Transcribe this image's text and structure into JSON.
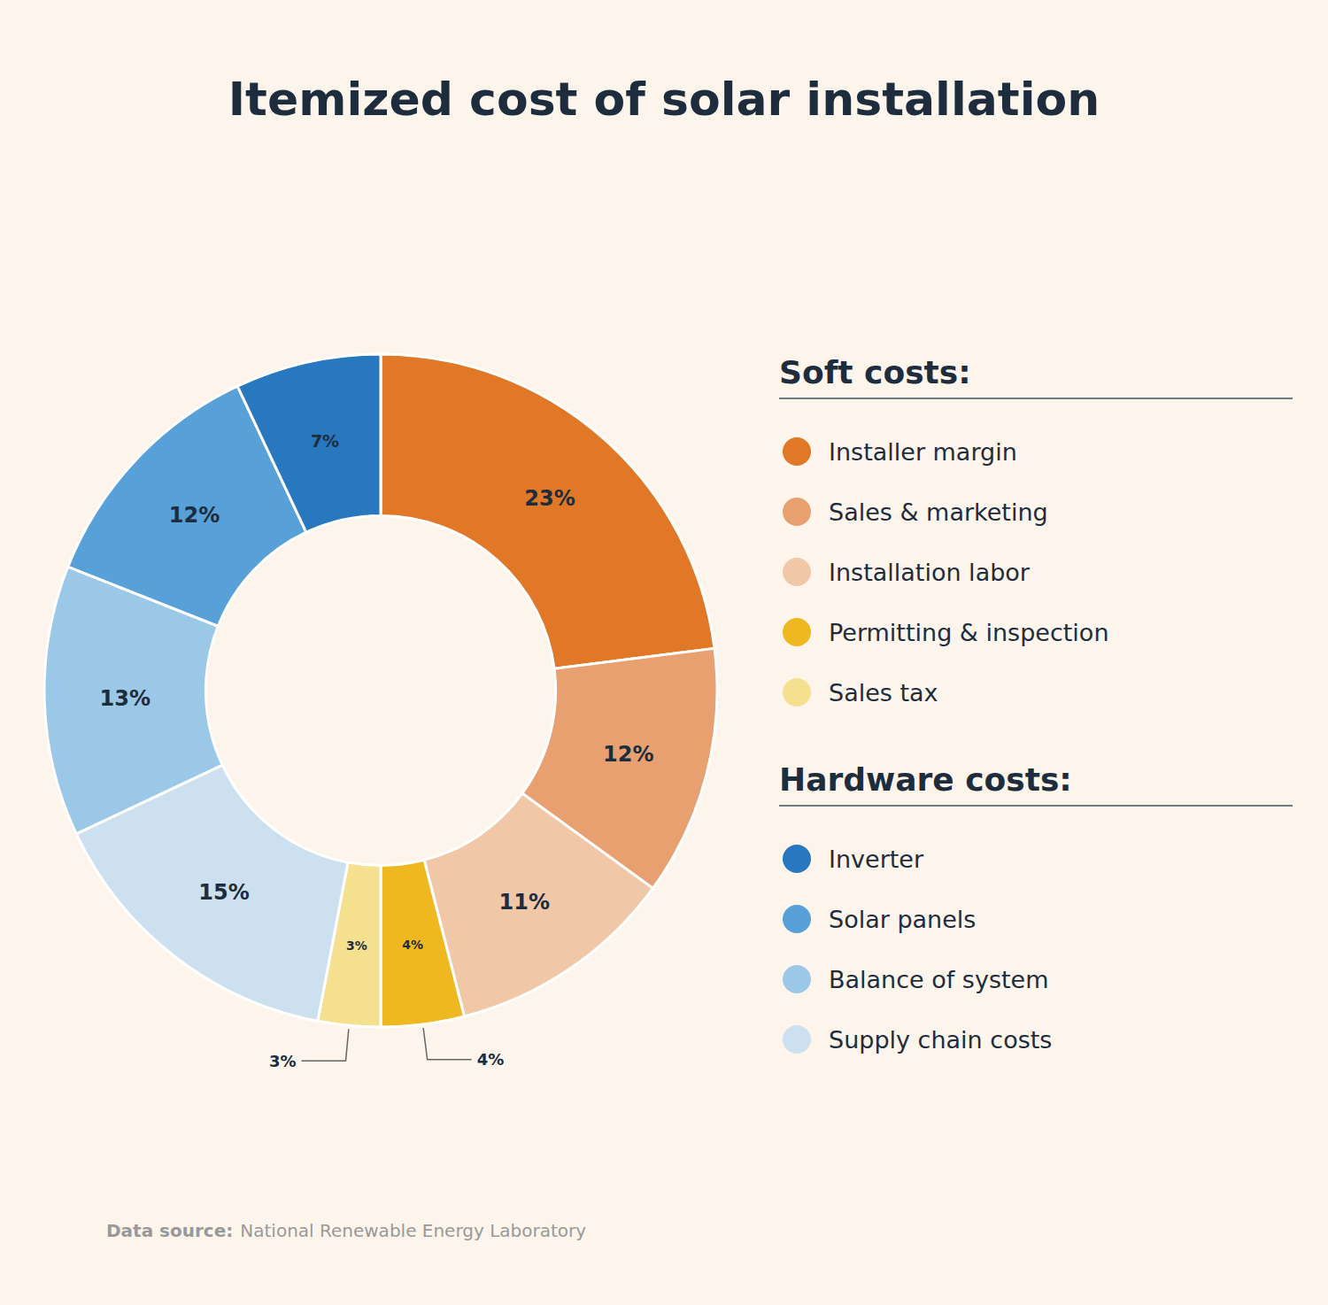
{
  "chart_data": {
    "type": "donut",
    "title": "Itemized cost of solar installation",
    "categories": [
      "Installer margin",
      "Sales & marketing",
      "Installation labor",
      "Permitting & inspection",
      "Sales tax",
      "Supply chain costs",
      "Balance of system",
      "Solar panels",
      "Inverter"
    ],
    "values": [
      23,
      12,
      11,
      4,
      3,
      15,
      13,
      12,
      7
    ],
    "value_labels": [
      "23%",
      "12%",
      "11%",
      "4%",
      "3%",
      "15%",
      "13%",
      "12%",
      "7%"
    ],
    "colors": [
      "#e07828",
      "#e8a070",
      "#f0c8a8",
      "#f0b820",
      "#f5e090",
      "#cce0f0",
      "#9cc8e8",
      "#58a0d8",
      "#2878c0"
    ],
    "data_labels": true,
    "legend": "right",
    "legend_groups": [
      {
        "title": "Soft costs:",
        "items": [
          "Installer margin",
          "Sales & marketing",
          "Installation labor",
          "Permitting & inspection",
          "Sales tax"
        ]
      },
      {
        "title": "Hardware costs:",
        "items": [
          "Inverter",
          "Solar panels",
          "Balance of system",
          "Supply chain costs"
        ]
      }
    ],
    "annotations": [
      "Data source:",
      "National Renewable Energy Laboratory"
    ]
  }
}
